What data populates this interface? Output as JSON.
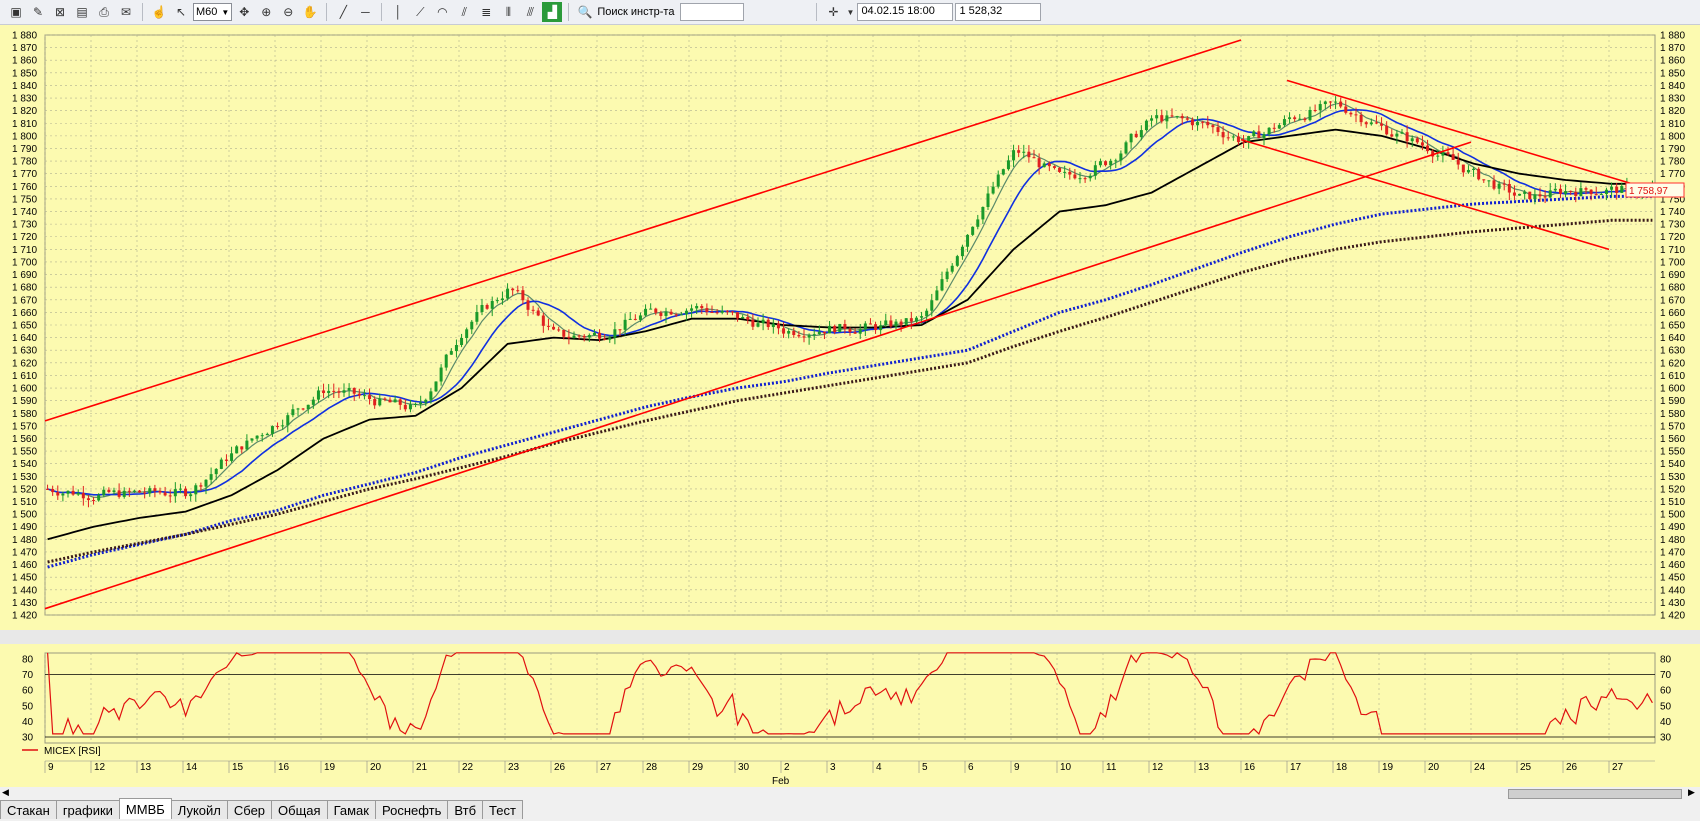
{
  "toolbar": {
    "interval": "M60",
    "search_label": "Поиск инстр-та",
    "search_value": "",
    "datetime": "04.02.15 18:00",
    "price_value": "1 528,32"
  },
  "price_axis": {
    "ticks": [
      "1 880",
      "1 870",
      "1 860",
      "1 850",
      "1 840",
      "1 830",
      "1 820",
      "1 810",
      "1 800",
      "1 790",
      "1 780",
      "1 770",
      "1 760",
      "1 750",
      "1 740",
      "1 730",
      "1 720",
      "1 710",
      "1 700",
      "1 690",
      "1 680",
      "1 670",
      "1 660",
      "1 650",
      "1 640",
      "1 630",
      "1 620",
      "1 610",
      "1 600",
      "1 590",
      "1 580",
      "1 570",
      "1 560",
      "1 550",
      "1 540",
      "1 530",
      "1 520",
      "1 510",
      "1 500",
      "1 490",
      "1 480",
      "1 470",
      "1 460",
      "1 450",
      "1 440",
      "1 430",
      "1 420"
    ],
    "last_price": "1 758,97"
  },
  "rsi": {
    "legend": "MICEX [RSI]",
    "ticks": [
      "80",
      "70",
      "60",
      "50",
      "40",
      "30"
    ]
  },
  "date_axis": {
    "days": [
      "9",
      "12",
      "13",
      "14",
      "15",
      "16",
      "19",
      "20",
      "21",
      "22",
      "23",
      "26",
      "27",
      "28",
      "29",
      "30",
      "2",
      "3",
      "4",
      "5",
      "6",
      "9",
      "10",
      "11",
      "12",
      "13",
      "16",
      "17",
      "18",
      "19",
      "20",
      "24",
      "25",
      "26",
      "27"
    ],
    "month_label": "Feb"
  },
  "tabs": [
    {
      "label": "Стакан",
      "active": false
    },
    {
      "label": "графики",
      "active": false
    },
    {
      "label": "ММВБ",
      "active": true
    },
    {
      "label": "Лукойл",
      "active": false
    },
    {
      "label": "Сбер",
      "active": false
    },
    {
      "label": "Общая",
      "active": false
    },
    {
      "label": "Гамак",
      "active": false
    },
    {
      "label": "Роснефть",
      "active": false
    },
    {
      "label": "Втб",
      "active": false
    },
    {
      "label": "Тест",
      "active": false
    }
  ],
  "chart_data": {
    "type": "line",
    "instrument": "MICEX",
    "interval": "M60",
    "price_axis_range": [
      1420,
      1880
    ],
    "rsi_axis_range": [
      30,
      80
    ],
    "colors": {
      "background": "#fcfab0",
      "candle_up": "#1a9a2a",
      "candle_down": "#e02020",
      "ma_fast": "#5a8a6a",
      "ma_mid": "#1030e0",
      "ma_slow": "#000000",
      "ma_dotted_blue": "#1020d0",
      "ma_dotted_brown": "#3a1a1a",
      "trendline": "#ff0000",
      "rsi": "#e01010"
    },
    "ma_slow_by_day": [
      1480,
      1490,
      1497,
      1502,
      1515,
      1535,
      1560,
      1575,
      1578,
      1600,
      1635,
      1640,
      1638,
      1645,
      1655,
      1655,
      1650,
      1648,
      1648,
      1650,
      1670,
      1710,
      1740,
      1745,
      1755,
      1775,
      1795,
      1800,
      1805,
      1800,
      1790,
      1778,
      1770,
      1765,
      1762
    ],
    "ma_dotted_blue_by_day": [
      1458,
      1468,
      1476,
      1484,
      1495,
      1503,
      1515,
      1524,
      1533,
      1545,
      1555,
      1565,
      1575,
      1585,
      1593,
      1600,
      1605,
      1612,
      1618,
      1624,
      1630,
      1645,
      1660,
      1670,
      1682,
      1695,
      1708,
      1720,
      1730,
      1738,
      1742,
      1746,
      1748,
      1750,
      1752
    ],
    "ma_dotted_brown_by_day": [
      1462,
      1470,
      1477,
      1484,
      1492,
      1500,
      1510,
      1520,
      1528,
      1537,
      1546,
      1556,
      1565,
      1574,
      1582,
      1590,
      1596,
      1602,
      1608,
      1614,
      1620,
      1633,
      1645,
      1656,
      1668,
      1680,
      1692,
      1702,
      1710,
      1716,
      1720,
      1724,
      1727,
      1730,
      1733
    ],
    "channel_up_upper": {
      "from": [
        0,
        1574
      ],
      "to": [
        26,
        1876
      ]
    },
    "channel_up_lower": {
      "from": [
        0,
        1425
      ],
      "to": [
        31,
        1795
      ]
    },
    "channel_down_upper": {
      "from": [
        27,
        1844
      ],
      "to": [
        34.5,
        1762
      ]
    },
    "channel_down_lower": {
      "from": [
        26,
        1797
      ],
      "to": [
        34,
        1710
      ]
    },
    "rsi_levels": [
      30,
      70
    ]
  }
}
